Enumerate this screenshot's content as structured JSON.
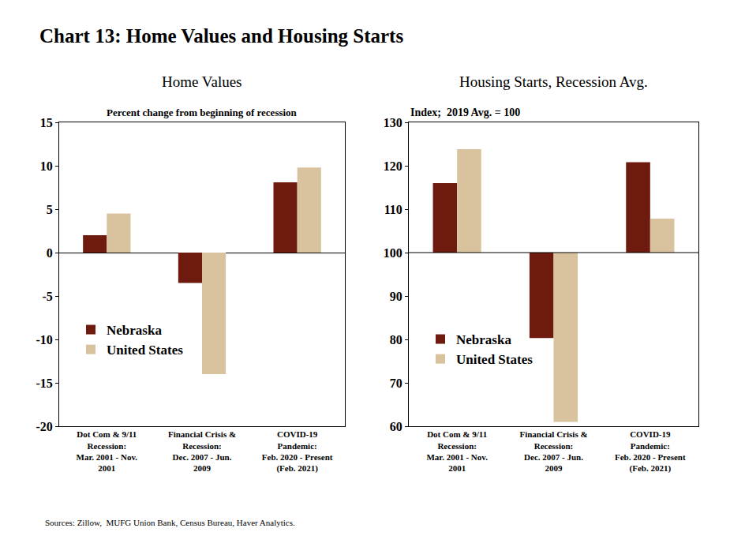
{
  "title": "Chart 13: Home Values and Housing Starts",
  "source": "Sources: Zillow,  MUFG Union Bank, Census Bureau, Haver Analytics.",
  "chart_data": [
    {
      "type": "bar",
      "title": "Home Values",
      "subtitle": "Percent change from beginning of recession",
      "categories": [
        "Dot Com & 9/11\nRecession:\nMar. 2001 - Nov.\n2001",
        "Financial Crisis &\nRecession:\nDec. 2007 - Jun.\n2009",
        "COVID-19\nPandemic:\nFeb. 2020 - Present\n(Feb. 2021)"
      ],
      "series": [
        {
          "name": "Nebraska",
          "color": "#6e1a0e",
          "values": [
            2,
            -3.5,
            8.1
          ]
        },
        {
          "name": "United States",
          "color": "#d8c39e",
          "values": [
            4.5,
            -14,
            9.8
          ]
        }
      ],
      "ylim": [
        -20,
        15
      ],
      "yticks": [
        -20,
        -15,
        -10,
        -5,
        0,
        5,
        10,
        15
      ],
      "legend": "lower left"
    },
    {
      "type": "bar",
      "title": "Housing Starts, Recession Avg.",
      "subtitle": "Index;  2019 Avg. = 100",
      "categories": [
        "Dot Com & 9/11\nRecession:\nMar. 2001 - Nov.\n2001",
        "Financial Crisis &\nRecession:\nDec. 2007 - Jun.\n2009",
        "COVID-19\nPandemic:\nFeb. 2020 - Present\n(Feb. 2021)"
      ],
      "baseline": 100,
      "series": [
        {
          "name": "Nebraska",
          "color": "#6e1a0e",
          "values": [
            116,
            80.3,
            120.8
          ]
        },
        {
          "name": "United States",
          "color": "#d8c39e",
          "values": [
            123.8,
            61,
            107.8
          ]
        }
      ],
      "ylim": [
        60,
        130
      ],
      "yticks": [
        60,
        70,
        80,
        90,
        100,
        110,
        120,
        130
      ],
      "legend": "lower left"
    }
  ]
}
